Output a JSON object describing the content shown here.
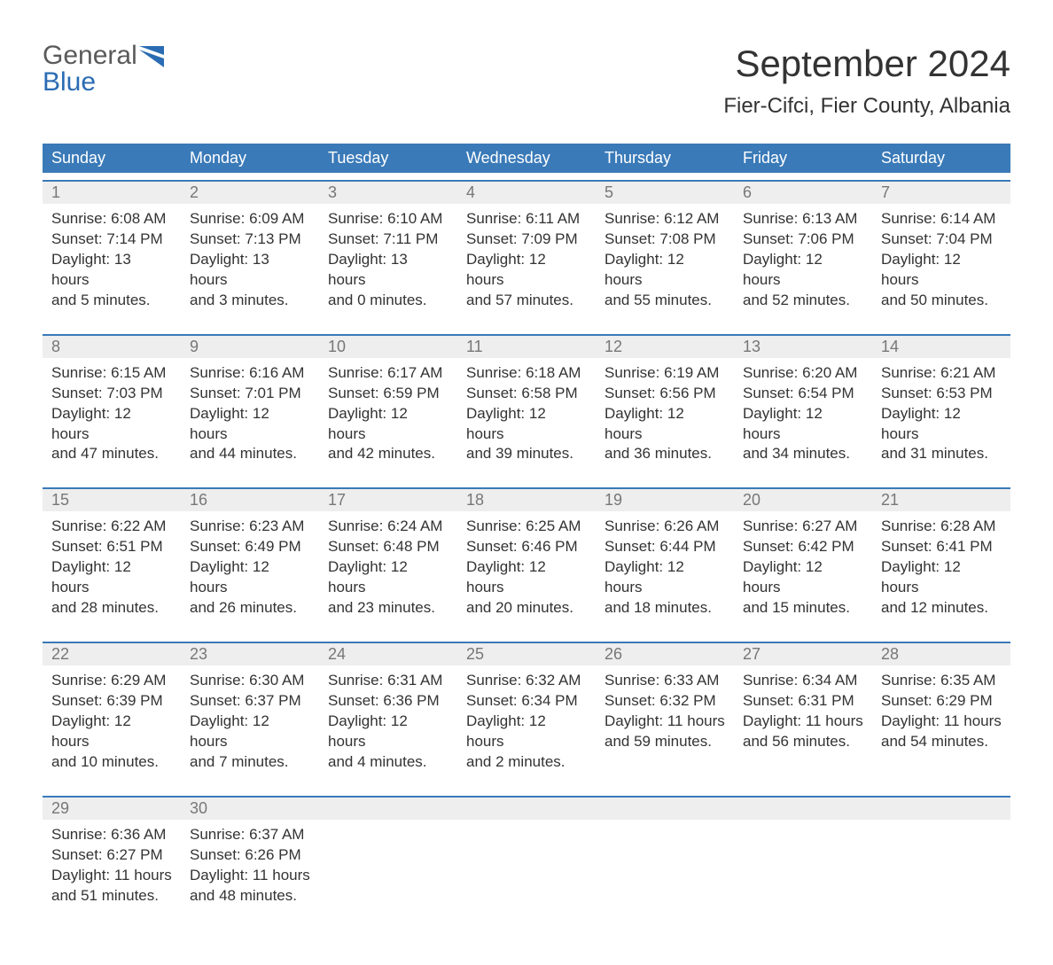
{
  "logo": {
    "word1": "General",
    "word2": "Blue",
    "shape_color": "#2a6cb3",
    "text_gray": "#5a5a5a",
    "text_blue": "#2a6cb3"
  },
  "title": "September 2024",
  "location": "Fier-Cifci, Fier County, Albania",
  "colors": {
    "header_bg": "#3a7ab8",
    "header_text": "#ffffff",
    "date_bg": "#eeeeee",
    "date_border": "#3a7ab8",
    "date_text": "#777777",
    "body_text": "#333333",
    "page_bg": "#ffffff"
  },
  "typography": {
    "title_fontsize": 42,
    "location_fontsize": 24,
    "header_fontsize": 18,
    "date_fontsize": 18,
    "body_fontsize": 17
  },
  "layout": {
    "columns": 7,
    "rows": 5
  },
  "day_names": [
    "Sunday",
    "Monday",
    "Tuesday",
    "Wednesday",
    "Thursday",
    "Friday",
    "Saturday"
  ],
  "labels": {
    "sunrise": "Sunrise:",
    "sunset": "Sunset:",
    "daylight": "Daylight:"
  },
  "weeks": [
    [
      {
        "date": "1",
        "sunrise": "6:08 AM",
        "sunset": "7:14 PM",
        "daylight1": "13 hours",
        "daylight2": "and 5 minutes."
      },
      {
        "date": "2",
        "sunrise": "6:09 AM",
        "sunset": "7:13 PM",
        "daylight1": "13 hours",
        "daylight2": "and 3 minutes."
      },
      {
        "date": "3",
        "sunrise": "6:10 AM",
        "sunset": "7:11 PM",
        "daylight1": "13 hours",
        "daylight2": "and 0 minutes."
      },
      {
        "date": "4",
        "sunrise": "6:11 AM",
        "sunset": "7:09 PM",
        "daylight1": "12 hours",
        "daylight2": "and 57 minutes."
      },
      {
        "date": "5",
        "sunrise": "6:12 AM",
        "sunset": "7:08 PM",
        "daylight1": "12 hours",
        "daylight2": "and 55 minutes."
      },
      {
        "date": "6",
        "sunrise": "6:13 AM",
        "sunset": "7:06 PM",
        "daylight1": "12 hours",
        "daylight2": "and 52 minutes."
      },
      {
        "date": "7",
        "sunrise": "6:14 AM",
        "sunset": "7:04 PM",
        "daylight1": "12 hours",
        "daylight2": "and 50 minutes."
      }
    ],
    [
      {
        "date": "8",
        "sunrise": "6:15 AM",
        "sunset": "7:03 PM",
        "daylight1": "12 hours",
        "daylight2": "and 47 minutes."
      },
      {
        "date": "9",
        "sunrise": "6:16 AM",
        "sunset": "7:01 PM",
        "daylight1": "12 hours",
        "daylight2": "and 44 minutes."
      },
      {
        "date": "10",
        "sunrise": "6:17 AM",
        "sunset": "6:59 PM",
        "daylight1": "12 hours",
        "daylight2": "and 42 minutes."
      },
      {
        "date": "11",
        "sunrise": "6:18 AM",
        "sunset": "6:58 PM",
        "daylight1": "12 hours",
        "daylight2": "and 39 minutes."
      },
      {
        "date": "12",
        "sunrise": "6:19 AM",
        "sunset": "6:56 PM",
        "daylight1": "12 hours",
        "daylight2": "and 36 minutes."
      },
      {
        "date": "13",
        "sunrise": "6:20 AM",
        "sunset": "6:54 PM",
        "daylight1": "12 hours",
        "daylight2": "and 34 minutes."
      },
      {
        "date": "14",
        "sunrise": "6:21 AM",
        "sunset": "6:53 PM",
        "daylight1": "12 hours",
        "daylight2": "and 31 minutes."
      }
    ],
    [
      {
        "date": "15",
        "sunrise": "6:22 AM",
        "sunset": "6:51 PM",
        "daylight1": "12 hours",
        "daylight2": "and 28 minutes."
      },
      {
        "date": "16",
        "sunrise": "6:23 AM",
        "sunset": "6:49 PM",
        "daylight1": "12 hours",
        "daylight2": "and 26 minutes."
      },
      {
        "date": "17",
        "sunrise": "6:24 AM",
        "sunset": "6:48 PM",
        "daylight1": "12 hours",
        "daylight2": "and 23 minutes."
      },
      {
        "date": "18",
        "sunrise": "6:25 AM",
        "sunset": "6:46 PM",
        "daylight1": "12 hours",
        "daylight2": "and 20 minutes."
      },
      {
        "date": "19",
        "sunrise": "6:26 AM",
        "sunset": "6:44 PM",
        "daylight1": "12 hours",
        "daylight2": "and 18 minutes."
      },
      {
        "date": "20",
        "sunrise": "6:27 AM",
        "sunset": "6:42 PM",
        "daylight1": "12 hours",
        "daylight2": "and 15 minutes."
      },
      {
        "date": "21",
        "sunrise": "6:28 AM",
        "sunset": "6:41 PM",
        "daylight1": "12 hours",
        "daylight2": "and 12 minutes."
      }
    ],
    [
      {
        "date": "22",
        "sunrise": "6:29 AM",
        "sunset": "6:39 PM",
        "daylight1": "12 hours",
        "daylight2": "and 10 minutes."
      },
      {
        "date": "23",
        "sunrise": "6:30 AM",
        "sunset": "6:37 PM",
        "daylight1": "12 hours",
        "daylight2": "and 7 minutes."
      },
      {
        "date": "24",
        "sunrise": "6:31 AM",
        "sunset": "6:36 PM",
        "daylight1": "12 hours",
        "daylight2": "and 4 minutes."
      },
      {
        "date": "25",
        "sunrise": "6:32 AM",
        "sunset": "6:34 PM",
        "daylight1": "12 hours",
        "daylight2": "and 2 minutes."
      },
      {
        "date": "26",
        "sunrise": "6:33 AM",
        "sunset": "6:32 PM",
        "daylight1": "11 hours",
        "daylight2": "and 59 minutes."
      },
      {
        "date": "27",
        "sunrise": "6:34 AM",
        "sunset": "6:31 PM",
        "daylight1": "11 hours",
        "daylight2": "and 56 minutes."
      },
      {
        "date": "28",
        "sunrise": "6:35 AM",
        "sunset": "6:29 PM",
        "daylight1": "11 hours",
        "daylight2": "and 54 minutes."
      }
    ],
    [
      {
        "date": "29",
        "sunrise": "6:36 AM",
        "sunset": "6:27 PM",
        "daylight1": "11 hours",
        "daylight2": "and 51 minutes."
      },
      {
        "date": "30",
        "sunrise": "6:37 AM",
        "sunset": "6:26 PM",
        "daylight1": "11 hours",
        "daylight2": "and 48 minutes."
      },
      null,
      null,
      null,
      null,
      null
    ]
  ]
}
